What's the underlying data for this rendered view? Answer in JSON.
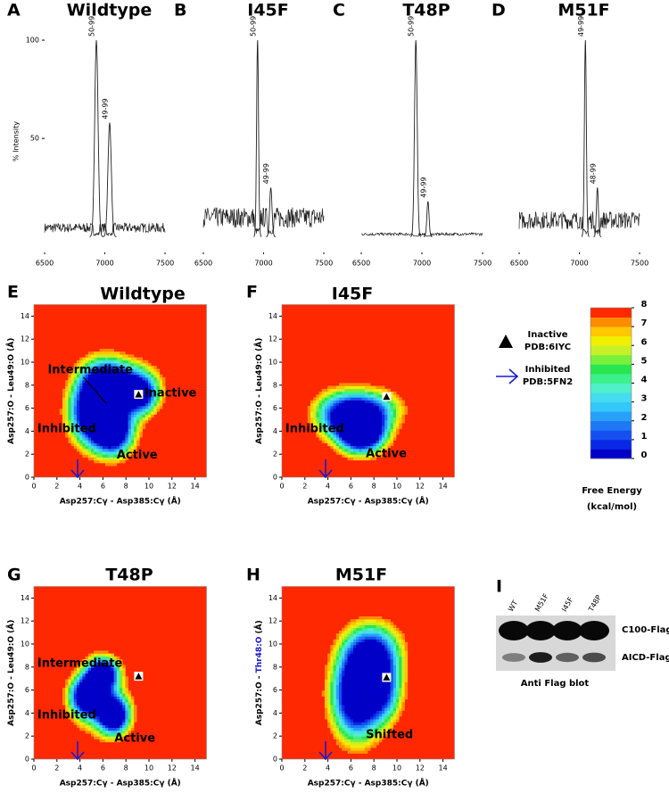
{
  "chart_data": [
    {
      "type": "spectrum",
      "letter": "A",
      "title": "Wildtype",
      "ylabel": "% Intensity",
      "xlim": [
        6500,
        7500
      ],
      "xticks": [
        6500,
        7000,
        7500
      ],
      "ylim": [
        -8,
        105
      ],
      "yticks": [
        50,
        100
      ],
      "peaks": [
        {
          "label": "50-99",
          "x": 6930,
          "y": 100
        },
        {
          "label": "49-99",
          "x": 7040,
          "y": 58
        }
      ]
    },
    {
      "type": "spectrum",
      "letter": "B",
      "title": "I45F",
      "xlim": [
        6500,
        7500
      ],
      "xticks": [
        6500,
        7000,
        7500
      ],
      "ylim": [
        -8,
        105
      ],
      "yticks": [],
      "peaks": [
        {
          "label": "50-99",
          "x": 6950,
          "y": 100
        },
        {
          "label": "49-99",
          "x": 7060,
          "y": 25
        }
      ]
    },
    {
      "type": "spectrum",
      "letter": "C",
      "title": "T48P",
      "xlim": [
        6500,
        7500
      ],
      "xticks": [
        6500,
        7000,
        7500
      ],
      "ylim": [
        -8,
        105
      ],
      "yticks": [],
      "peaks": [
        {
          "label": "50-99",
          "x": 6950,
          "y": 100
        },
        {
          "label": "49-99",
          "x": 7050,
          "y": 18
        }
      ]
    },
    {
      "type": "spectrum",
      "letter": "D",
      "title": "M51F",
      "xlim": [
        6500,
        7500
      ],
      "xticks": [
        6500,
        7000,
        7500
      ],
      "ylim": [
        -8,
        105
      ],
      "yticks": [],
      "peaks": [
        {
          "label": "49-99",
          "x": 7050,
          "y": 100
        },
        {
          "label": "48-99",
          "x": 7150,
          "y": 25
        }
      ]
    },
    {
      "type": "contour",
      "letter": "E",
      "title": "Wildtype",
      "xlabel": "Asp257:Cγ - Asp385:Cγ (Å)",
      "ylabel": [
        "Asp257:O - Leu49:O (Å)"
      ],
      "ylabel_colors": [
        "#000000"
      ],
      "xlim": [
        0,
        15
      ],
      "xticks": [
        0,
        2,
        4,
        6,
        8,
        10,
        12,
        14
      ],
      "ylim": [
        0,
        15
      ],
      "yticks": [
        0,
        2,
        4,
        6,
        8,
        10,
        12,
        14
      ],
      "annotations": [
        "Intermediate",
        "Inhibited",
        "Inactive",
        "Active"
      ],
      "inactive": [
        9.1,
        7.2
      ],
      "inhibited_x": 3.8
    },
    {
      "type": "contour",
      "letter": "F",
      "title": "I45F",
      "xlabel": "Asp257:Cγ - Asp385:Cγ (Å)",
      "ylabel": [
        "Asp257:O - Leu49:O (Å)"
      ],
      "ylabel_colors": [
        "#000000"
      ],
      "xlim": [
        0,
        15
      ],
      "xticks": [
        0,
        2,
        4,
        6,
        8,
        10,
        12,
        14
      ],
      "ylim": [
        0,
        15
      ],
      "yticks": [
        0,
        2,
        4,
        6,
        8,
        10,
        12,
        14
      ],
      "annotations": [
        "Inhibited",
        "Active"
      ],
      "inactive": [
        9.1,
        7.0
      ],
      "inhibited_x": 3.8
    },
    {
      "type": "contour",
      "letter": "G",
      "title": "T48P",
      "xlabel": "Asp257:Cγ - Asp385:Cγ (Å)",
      "ylabel": [
        "Asp257:O - Leu49:O (Å)"
      ],
      "ylabel_colors": [
        "#000000"
      ],
      "xlim": [
        0,
        15
      ],
      "xticks": [
        0,
        2,
        4,
        6,
        8,
        10,
        12,
        14
      ],
      "ylim": [
        0,
        15
      ],
      "yticks": [
        0,
        2,
        4,
        6,
        8,
        10,
        12,
        14
      ],
      "annotations": [
        "Intermediate",
        "Inhibited",
        "Active"
      ],
      "inactive": [
        9.1,
        7.2
      ],
      "inhibited_x": 3.8
    },
    {
      "type": "contour",
      "letter": "H",
      "title": "M51F",
      "xlabel": "Asp257:Cγ - Asp385:Cγ (Å)",
      "ylabel": [
        "Asp257:O - ",
        "Thr48:O",
        " (Å)"
      ],
      "ylabel_colors": [
        "#000000",
        "#1a1acc",
        "#000000"
      ],
      "xlim": [
        0,
        15
      ],
      "xticks": [
        0,
        2,
        4,
        6,
        8,
        10,
        12,
        14
      ],
      "ylim": [
        0,
        15
      ],
      "yticks": [
        0,
        2,
        4,
        6,
        8,
        10,
        12,
        14
      ],
      "annotations": [
        "Shifted"
      ],
      "inactive": [
        9.1,
        7.1
      ],
      "inhibited_x": 3.8
    }
  ],
  "legend": {
    "inactive": [
      "Inactive",
      "PDB:6IYC"
    ],
    "inhibited": [
      "Inhibited",
      "PDB:5FN2"
    ]
  },
  "colorbar": {
    "ticks": [
      0,
      1,
      2,
      3,
      4,
      5,
      6,
      7,
      8
    ],
    "lim": [
      0,
      8
    ],
    "label": [
      "Free Energy",
      "(kcal/mol)"
    ],
    "colors": [
      "#0000c8",
      "#0a28e6",
      "#1450f0",
      "#1e78f5",
      "#28a0fa",
      "#32c8fa",
      "#46dcf0",
      "#50f0c8",
      "#3cf08c",
      "#28e650",
      "#78f03c",
      "#c8f028",
      "#f0f000",
      "#ffc800",
      "#ff8c00",
      "#ff2800"
    ]
  },
  "blot": {
    "letter": "I",
    "lanes": [
      "WT",
      "M51F",
      "I45F",
      "T48P"
    ],
    "bands": [
      "C100-Flag",
      "AICD-Flag"
    ],
    "caption": "Anti Flag blot"
  }
}
